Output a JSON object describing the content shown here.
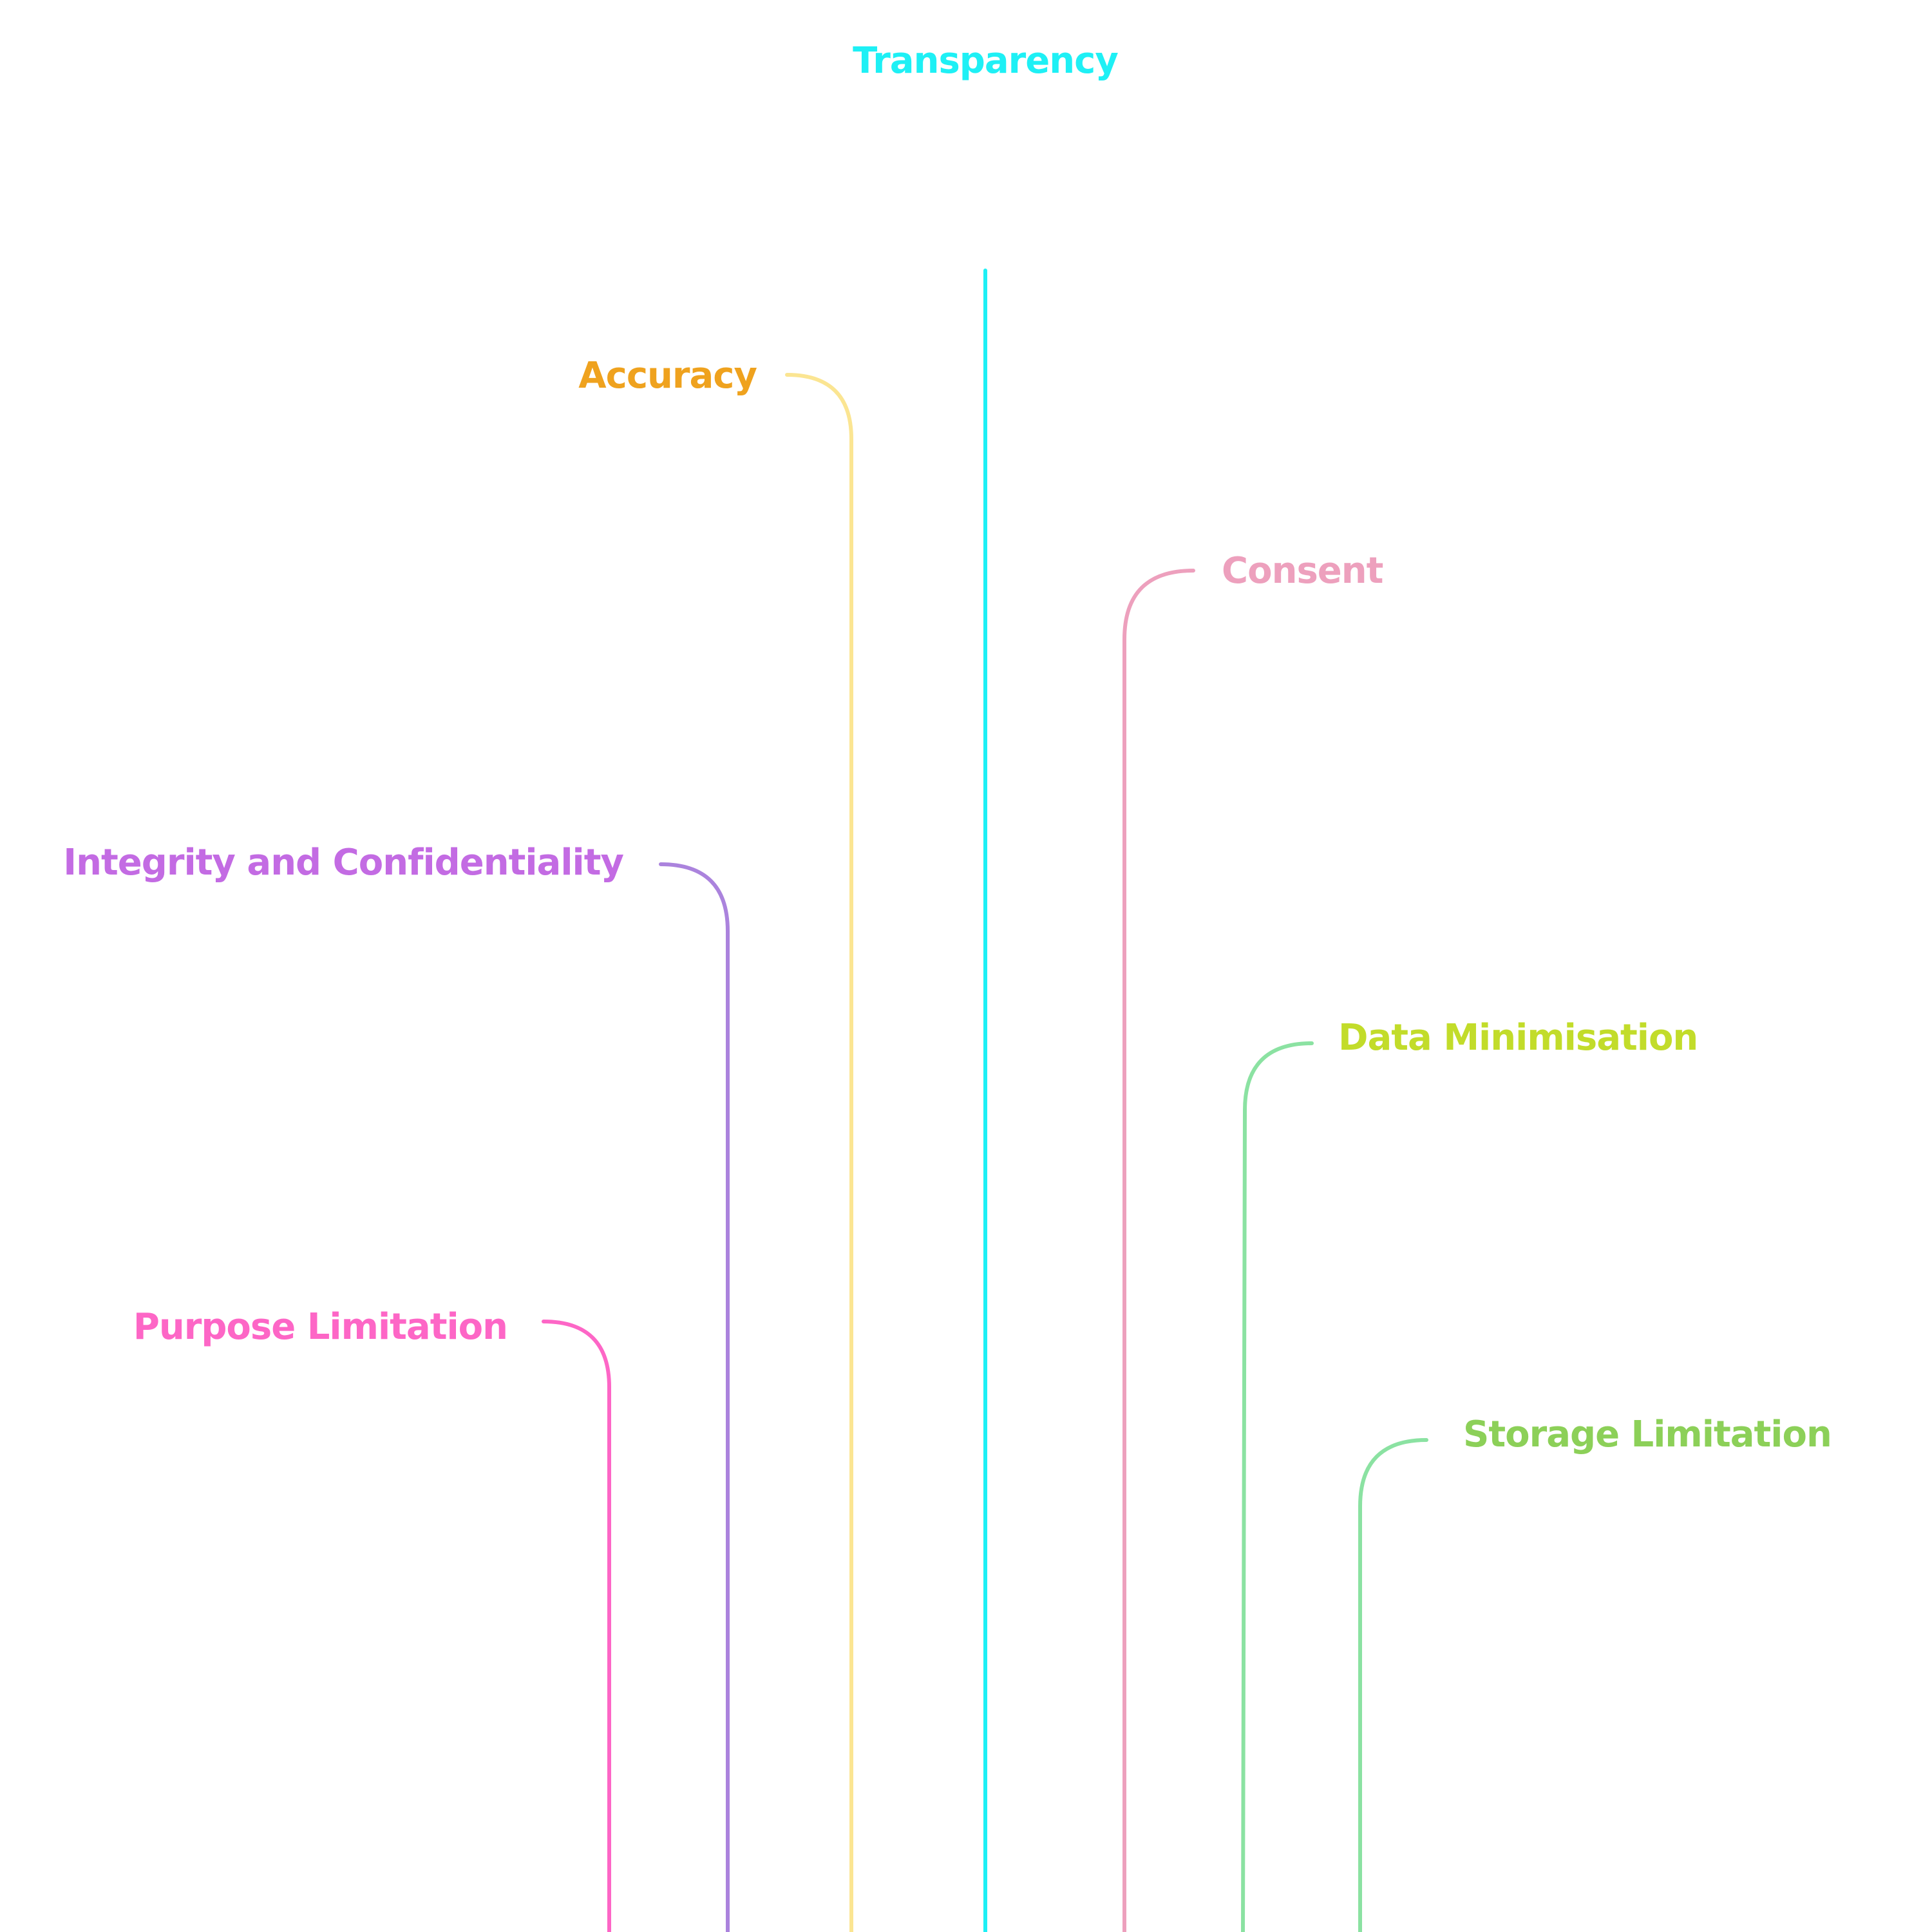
{
  "diagram": {
    "nodes": [
      {
        "id": "transparency",
        "label": "Transparency",
        "text_color": "#1ef0f5",
        "line_color": "#1ef0f5"
      },
      {
        "id": "accuracy",
        "label": "Accuracy",
        "text_color": "#efa21e",
        "line_color": "#fbe592"
      },
      {
        "id": "consent",
        "label": "Consent",
        "text_color": "#eda0bd",
        "line_color": "#eda0bd"
      },
      {
        "id": "integrity",
        "label": "Integrity and Confidentiality",
        "text_color": "#c36be3",
        "line_color": "#ab83dd"
      },
      {
        "id": "data_minimisation",
        "label": "Data Minimisation",
        "text_color": "#c2dc2a",
        "line_color": "#8be2a2"
      },
      {
        "id": "purpose_limitation",
        "label": "Purpose Limitation",
        "text_color": "#fd66c6",
        "line_color": "#fd66c6"
      },
      {
        "id": "storage_limitation",
        "label": "Storage Limitation",
        "text_color": "#8cd058",
        "line_color": "#8be2a2"
      }
    ]
  }
}
